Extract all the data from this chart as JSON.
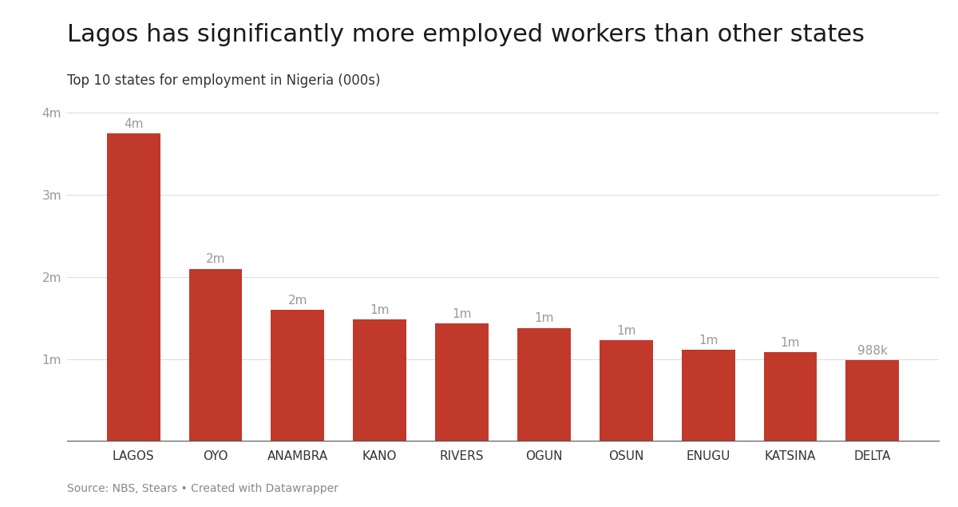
{
  "title": "Lagos has significantly more employed workers than other states",
  "subtitle": "Top 10 states for employment in Nigeria (000s)",
  "source": "Source: NBS, Stears • Created with Datawrapper",
  "categories": [
    "LAGOS",
    "OYO",
    "ANAMBRA",
    "KANO",
    "RIVERS",
    "OGUN",
    "OSUN",
    "ENUGU",
    "KATSINA",
    "DELTA"
  ],
  "values": [
    3750,
    2100,
    1600,
    1480,
    1430,
    1380,
    1230,
    1110,
    1080,
    988
  ],
  "bar_color": "#c0392b",
  "bar_labels": [
    "4m",
    "2m",
    "2m",
    "1m",
    "1m",
    "1m",
    "1m",
    "1m",
    "1m",
    "988k"
  ],
  "background_color": "#ffffff",
  "ylim": [
    0,
    4200
  ],
  "yticks": [
    0,
    1000,
    2000,
    3000,
    4000
  ],
  "ytick_labels": [
    "",
    "1m",
    "2m",
    "3m",
    "4m"
  ],
  "title_fontsize": 22,
  "subtitle_fontsize": 12,
  "source_fontsize": 10,
  "bar_label_fontsize": 11,
  "tick_fontsize": 11,
  "bar_label_color": "#999999",
  "tick_color": "#999999",
  "grid_color": "#dddddd",
  "spine_color": "#555555"
}
